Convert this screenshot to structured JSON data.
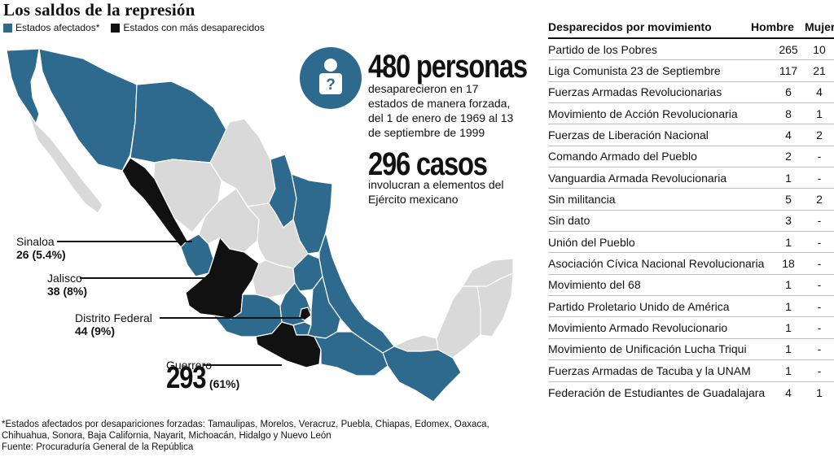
{
  "title": "Los saldos de la represión",
  "legend": {
    "affected": {
      "label": "Estados afectados*",
      "color": "#2e6a8e"
    },
    "most": {
      "label": "Estados con más desaparecidos",
      "color": "#111111"
    },
    "other_color": "#d9d9d9"
  },
  "callouts": {
    "sinaloa": {
      "name": "Sinaloa",
      "value": "26 (5.4%)"
    },
    "jalisco": {
      "name": "Jalisco",
      "value": "38 (8%)"
    },
    "df": {
      "name": "Distrito Federal",
      "value": "44 (9%)"
    },
    "guerrero": {
      "name": "Guerrero",
      "big": "293",
      "pct": "(61%)"
    }
  },
  "stats": {
    "icon": "question-person-icon",
    "persons_big": "480 personas",
    "persons_desc": "desaparecieron en 17 estados de manera forzada, del 1 de enero de 1969 al 13 de septiembre de 1999",
    "cases_big": "296 casos",
    "cases_desc": "involucran a elementos del Ejército mexicano"
  },
  "chart_data": {
    "type": "table",
    "columns": [
      "Desparecidos por movimiento",
      "Hombre",
      "Mujer"
    ],
    "rows": [
      [
        "Partido de los Pobres",
        "265",
        "10"
      ],
      [
        "Liga Comunista 23 de Septiembre",
        "117",
        "21"
      ],
      [
        "Fuerzas Armadas Revolucionarias",
        "6",
        "4"
      ],
      [
        "Movimiento de Acción Revolucionaria",
        "8",
        "1"
      ],
      [
        "Fuerzas de Liberación Nacional",
        "4",
        "2"
      ],
      [
        "Comando Armado del Pueblo",
        "2",
        "-"
      ],
      [
        "Vanguardia Armada Revolucionaria",
        "1",
        "-"
      ],
      [
        "Sin militancia",
        "5",
        "2"
      ],
      [
        "Sin dato",
        "3",
        "-"
      ],
      [
        "Unión del Pueblo",
        "1",
        "-"
      ],
      [
        "Asociación Cívica Nacional Revolucionaria",
        "18",
        "-"
      ],
      [
        "Movimiento del 68",
        "1",
        "-"
      ],
      [
        "Partido Proletario Unido de América",
        "1",
        "-"
      ],
      [
        "Movimiento Armado Revolucionario",
        "1",
        "-"
      ],
      [
        "Movimiento de Unificación Lucha Triqui",
        "1",
        "-"
      ],
      [
        "Fuerzas Armadas de Tacuba y la UNAM",
        "1",
        "-"
      ],
      [
        "Federación de Estudiantes de Guadalajara",
        "4",
        "1"
      ]
    ]
  },
  "notes": {
    "line1": "*Estados afectados por desapariciones forzadas: Tamaulipas, Morelos, Veracruz, Puebla, Chiapas, Edomex, Oaxaca,",
    "line2": "Chihuahua, Sonora, Baja California, Nayarit, Michoacán, Hidalgo y Nuevo León",
    "source": "Fuente: Procuraduría General de la República"
  }
}
